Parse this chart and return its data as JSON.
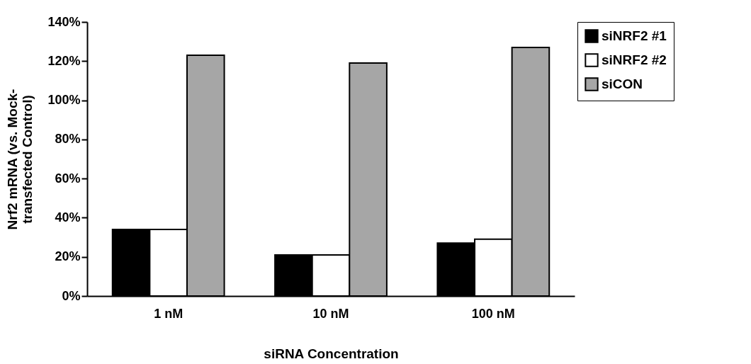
{
  "chart_data": {
    "type": "bar",
    "xlabel": "siRNA Concentration",
    "ylabel": "Nrf2 mRNA (vs. Mock-\ntransfected Control)",
    "categories": [
      "1 nM",
      "10 nM",
      "100 nM"
    ],
    "series": [
      {
        "name": "siNRF2 #1",
        "color": "#000000",
        "values": [
          34,
          21,
          27
        ]
      },
      {
        "name": "siNRF2 #2",
        "color": "#ffffff",
        "values": [
          34,
          21,
          29
        ]
      },
      {
        "name": "siCON",
        "color": "#a6a6a6",
        "values": [
          123,
          119,
          127
        ]
      }
    ],
    "ylim": [
      0,
      140
    ],
    "yticks": [
      {
        "value": 0,
        "label": "0%"
      },
      {
        "value": 20,
        "label": "20%"
      },
      {
        "value": 40,
        "label": "40%"
      },
      {
        "value": 60,
        "label": "60%"
      },
      {
        "value": 80,
        "label": "80%"
      },
      {
        "value": 100,
        "label": "100%"
      },
      {
        "value": 120,
        "label": "120%"
      },
      {
        "value": 140,
        "label": "140%"
      }
    ],
    "legend": "right",
    "grid": false
  }
}
